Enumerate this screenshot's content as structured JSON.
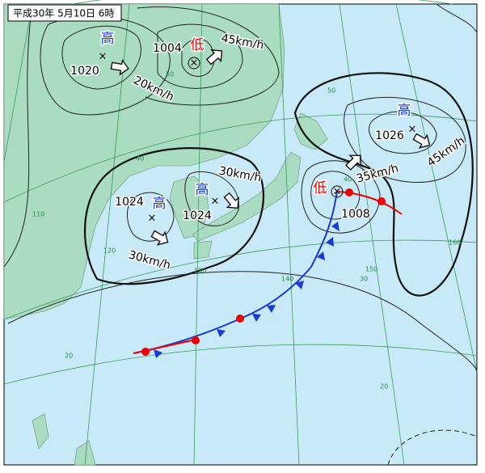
{
  "title": "平成30年 5月10日 6時",
  "systems": [
    {
      "kind": "高",
      "pressure": 1020,
      "speed": "20km/h"
    },
    {
      "kind": "低",
      "pressure": 1004,
      "speed": "45km/h"
    },
    {
      "kind": "高",
      "pressure": 1026,
      "speed": "45km/h"
    },
    {
      "kind": "高",
      "pressure": 1024,
      "speed": "30km/h"
    },
    {
      "kind": "高",
      "pressure": 1024,
      "speed": "30km/h"
    },
    {
      "kind": "低",
      "pressure": 1008,
      "speed": "35km/h"
    }
  ],
  "latitude_labels": [
    50,
    50,
    40,
    40,
    30,
    20,
    20
  ],
  "longitude_labels": [
    110,
    120,
    130,
    140,
    150,
    160
  ]
}
